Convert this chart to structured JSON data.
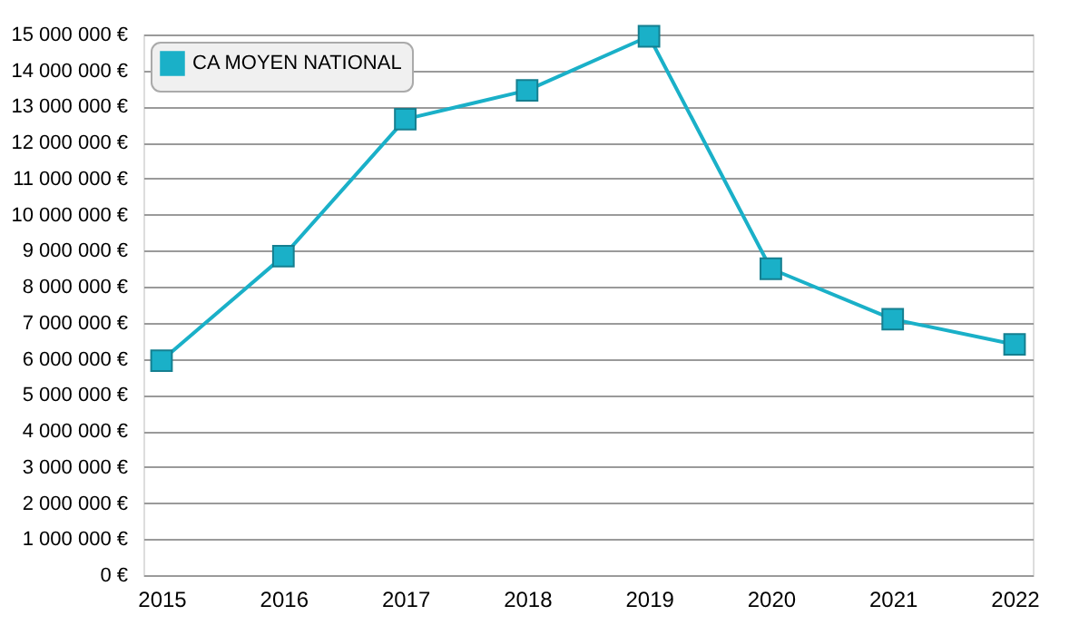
{
  "chart_data": {
    "type": "line",
    "categories": [
      "2015",
      "2016",
      "2017",
      "2018",
      "2019",
      "2020",
      "2021",
      "2022"
    ],
    "series": [
      {
        "name": "CA MOYEN NATIONAL",
        "color": "#1ab0c8",
        "values": [
          5950000,
          8850000,
          12650000,
          13450000,
          14950000,
          8500000,
          7100000,
          6400000
        ]
      }
    ],
    "ylim": [
      0,
      15000000
    ],
    "yticks": [
      {
        "value": 0,
        "label": "0 €"
      },
      {
        "value": 1000000,
        "label": "1 000 000 €"
      },
      {
        "value": 2000000,
        "label": "2 000 000 €"
      },
      {
        "value": 3000000,
        "label": "3 000 000 €"
      },
      {
        "value": 4000000,
        "label": "4 000 000 €"
      },
      {
        "value": 5000000,
        "label": "5 000 000 €"
      },
      {
        "value": 6000000,
        "label": "6 000 000 €"
      },
      {
        "value": 7000000,
        "label": "7 000 000 €"
      },
      {
        "value": 8000000,
        "label": "8 000 000 €"
      },
      {
        "value": 9000000,
        "label": "9 000 000 €"
      },
      {
        "value": 10000000,
        "label": "10 000 000 €"
      },
      {
        "value": 11000000,
        "label": "11 000 000 €"
      },
      {
        "value": 12000000,
        "label": "12 000 000 €"
      },
      {
        "value": 13000000,
        "label": "13 000 000 €"
      },
      {
        "value": 14000000,
        "label": "14 000 000 €"
      },
      {
        "value": 15000000,
        "label": "15 000 000 €"
      }
    ],
    "grid": "y",
    "legend": "top left",
    "marker": "square",
    "line_style": "solid"
  }
}
